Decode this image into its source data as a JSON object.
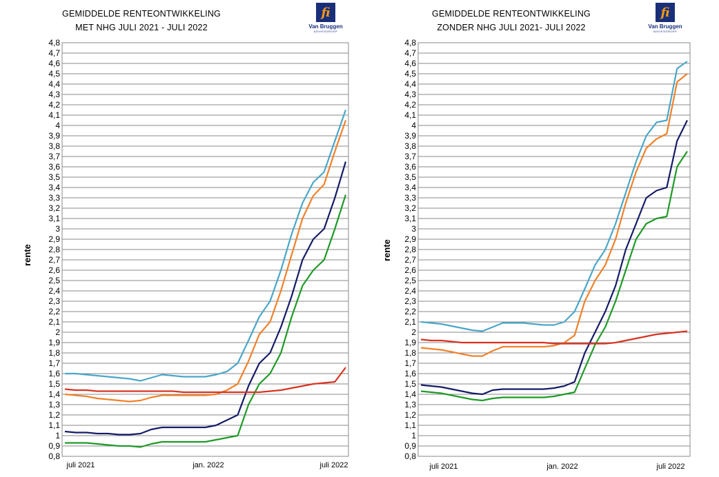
{
  "colors": {
    "lightblue": "#4aa6c9",
    "orange": "#f0812a",
    "navy": "#141b66",
    "green": "#1e9a26",
    "red": "#d93220",
    "grid": "#8a8a8a",
    "logo_blue": "#1a2f7a",
    "logo_orange": "#f29a12"
  },
  "chart_data": [
    {
      "type": "line",
      "title_line1": "GEMIDDELDE RENTEONTWIKKELING",
      "title_line2": "MET NHG  JULI 2021 - JULI 2022",
      "logo_text": "Van Bruggen",
      "logo_sub": "ADVIESGROEP",
      "logo_glyph": "fi",
      "ylabel": "rente",
      "ylim": [
        0.8,
        4.8
      ],
      "ytick_step": 0.1,
      "xtick_labels": [
        "juli 2021",
        "jan. 2022",
        "juli 2022"
      ],
      "x": [
        0,
        2,
        4,
        6,
        8,
        10,
        12,
        14,
        16,
        18,
        20,
        22,
        24,
        26,
        28,
        30,
        32,
        34,
        36,
        38,
        40,
        42,
        44,
        46,
        48,
        50,
        52
      ],
      "series": [
        {
          "name": "lightblue",
          "values": [
            1.6,
            1.6,
            1.59,
            1.58,
            1.57,
            1.56,
            1.55,
            1.53,
            1.56,
            1.59,
            1.58,
            1.57,
            1.57,
            1.57,
            1.59,
            1.62,
            1.7,
            1.92,
            2.15,
            2.3,
            2.6,
            2.95,
            3.25,
            3.45,
            3.55,
            3.85,
            4.15
          ]
        },
        {
          "name": "orange",
          "values": [
            1.4,
            1.39,
            1.38,
            1.36,
            1.35,
            1.34,
            1.33,
            1.34,
            1.37,
            1.39,
            1.39,
            1.39,
            1.39,
            1.39,
            1.4,
            1.44,
            1.5,
            1.72,
            1.98,
            2.1,
            2.4,
            2.75,
            3.1,
            3.32,
            3.43,
            3.75,
            4.05
          ]
        },
        {
          "name": "navy",
          "values": [
            1.04,
            1.03,
            1.03,
            1.02,
            1.02,
            1.01,
            1.01,
            1.02,
            1.06,
            1.08,
            1.08,
            1.08,
            1.08,
            1.08,
            1.1,
            1.15,
            1.2,
            1.48,
            1.7,
            1.8,
            2.05,
            2.35,
            2.7,
            2.9,
            3.0,
            3.3,
            3.65
          ]
        },
        {
          "name": "green",
          "values": [
            0.93,
            0.93,
            0.93,
            0.92,
            0.91,
            0.9,
            0.9,
            0.89,
            0.92,
            0.94,
            0.94,
            0.94,
            0.94,
            0.94,
            0.96,
            0.98,
            1.0,
            1.3,
            1.5,
            1.6,
            1.8,
            2.15,
            2.45,
            2.6,
            2.7,
            3.0,
            3.33
          ]
        },
        {
          "name": "red",
          "values": [
            1.45,
            1.44,
            1.44,
            1.43,
            1.43,
            1.43,
            1.43,
            1.43,
            1.43,
            1.43,
            1.43,
            1.42,
            1.42,
            1.42,
            1.42,
            1.42,
            1.42,
            1.42,
            1.42,
            1.43,
            1.44,
            1.46,
            1.48,
            1.5,
            1.51,
            1.52,
            1.66
          ]
        }
      ]
    },
    {
      "type": "line",
      "title_line1": "GEMIDDELDE RENTEONTWIKKELING",
      "title_line2": "ZONDER NHG JULI 2021- JULI 2022",
      "logo_text": "Van Bruggen",
      "logo_sub": "ADVIESGROEP",
      "logo_glyph": "fi",
      "ylabel": "rente",
      "ylim": [
        0.8,
        4.8
      ],
      "ytick_step": 0.1,
      "xtick_labels": [
        "juli 2021",
        "jan. 2022",
        "juli 2022"
      ],
      "x": [
        0,
        2,
        4,
        6,
        8,
        10,
        12,
        14,
        16,
        18,
        20,
        22,
        24,
        26,
        28,
        30,
        32,
        34,
        36,
        38,
        40,
        42,
        44,
        46,
        48,
        50,
        52
      ],
      "series": [
        {
          "name": "lightblue",
          "values": [
            2.1,
            2.09,
            2.08,
            2.06,
            2.04,
            2.02,
            2.01,
            2.05,
            2.09,
            2.09,
            2.09,
            2.08,
            2.07,
            2.07,
            2.1,
            2.2,
            2.42,
            2.65,
            2.8,
            3.05,
            3.35,
            3.65,
            3.9,
            4.03,
            4.05,
            4.55,
            4.62
          ]
        },
        {
          "name": "orange",
          "values": [
            1.85,
            1.84,
            1.83,
            1.81,
            1.79,
            1.77,
            1.77,
            1.82,
            1.86,
            1.86,
            1.86,
            1.86,
            1.86,
            1.87,
            1.9,
            1.97,
            2.3,
            2.5,
            2.65,
            2.9,
            3.25,
            3.55,
            3.78,
            3.87,
            3.92,
            4.42,
            4.5
          ]
        },
        {
          "name": "navy",
          "values": [
            1.49,
            1.48,
            1.47,
            1.45,
            1.43,
            1.41,
            1.4,
            1.44,
            1.45,
            1.45,
            1.45,
            1.45,
            1.45,
            1.46,
            1.48,
            1.52,
            1.8,
            2.0,
            2.2,
            2.45,
            2.8,
            3.05,
            3.3,
            3.37,
            3.4,
            3.85,
            4.05
          ]
        },
        {
          "name": "green",
          "values": [
            1.43,
            1.42,
            1.41,
            1.39,
            1.37,
            1.35,
            1.34,
            1.36,
            1.37,
            1.37,
            1.37,
            1.37,
            1.37,
            1.38,
            1.4,
            1.42,
            1.65,
            1.88,
            2.05,
            2.3,
            2.6,
            2.9,
            3.05,
            3.1,
            3.12,
            3.6,
            3.75
          ]
        },
        {
          "name": "red",
          "values": [
            1.93,
            1.92,
            1.92,
            1.91,
            1.9,
            1.9,
            1.9,
            1.9,
            1.9,
            1.9,
            1.9,
            1.9,
            1.9,
            1.89,
            1.89,
            1.89,
            1.89,
            1.89,
            1.89,
            1.9,
            1.92,
            1.94,
            1.96,
            1.98,
            1.99,
            2.0,
            2.01
          ]
        }
      ]
    }
  ]
}
